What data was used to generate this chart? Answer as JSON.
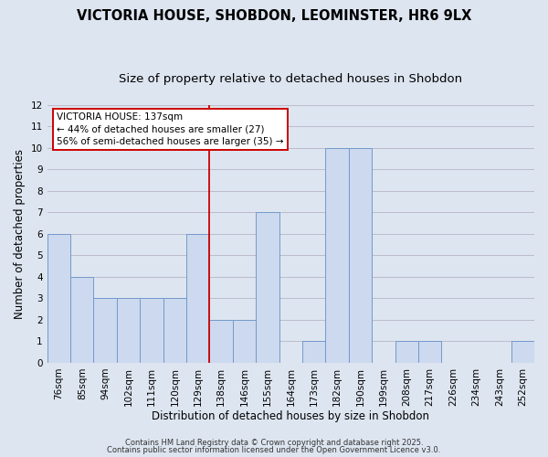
{
  "title": "VICTORIA HOUSE, SHOBDON, LEOMINSTER, HR6 9LX",
  "subtitle": "Size of property relative to detached houses in Shobdon",
  "xlabel": "Distribution of detached houses by size in Shobdon",
  "ylabel": "Number of detached properties",
  "categories": [
    "76sqm",
    "85sqm",
    "94sqm",
    "102sqm",
    "111sqm",
    "120sqm",
    "129sqm",
    "138sqm",
    "146sqm",
    "155sqm",
    "164sqm",
    "173sqm",
    "182sqm",
    "190sqm",
    "199sqm",
    "208sqm",
    "217sqm",
    "226sqm",
    "234sqm",
    "243sqm",
    "252sqm"
  ],
  "values": [
    6,
    4,
    3,
    3,
    3,
    3,
    6,
    2,
    2,
    7,
    0,
    1,
    10,
    10,
    0,
    1,
    1,
    0,
    0,
    0,
    1
  ],
  "bar_color": "#ccd9ee",
  "bar_edge_color": "#7399cc",
  "bar_edge_width": 0.7,
  "grid_color": "#bbbbcc",
  "background_color": "#dde5f0",
  "red_line_x": 6.5,
  "annotation_text": "VICTORIA HOUSE: 137sqm\n← 44% of detached houses are smaller (27)\n56% of semi-detached houses are larger (35) →",
  "annotation_box_facecolor": "#ffffff",
  "annotation_box_edgecolor": "#cc0000",
  "footer_line1": "Contains HM Land Registry data © Crown copyright and database right 2025.",
  "footer_line2": "Contains public sector information licensed under the Open Government Licence v3.0.",
  "ylim": [
    0,
    12
  ],
  "yticks": [
    0,
    1,
    2,
    3,
    4,
    5,
    6,
    7,
    8,
    9,
    10,
    11,
    12
  ],
  "title_fontsize": 10.5,
  "subtitle_fontsize": 9.5,
  "axis_label_fontsize": 8.5,
  "tick_fontsize": 7.5,
  "annotation_fontsize": 7.5,
  "footer_fontsize": 6.0
}
